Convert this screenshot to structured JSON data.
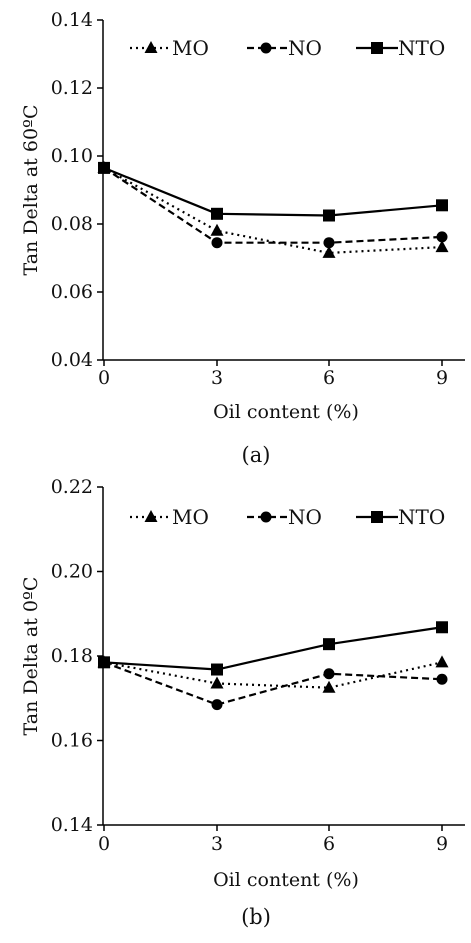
{
  "chart_data": [
    {
      "type": "line",
      "panel_label": "(a)",
      "xlabel": "Oil content (%)",
      "ylabel": "Tan Delta at 60ºC",
      "x": [
        0,
        3,
        6,
        9
      ],
      "xticks": [
        "0",
        "3",
        "6",
        "9"
      ],
      "ylim": [
        0.04,
        0.14
      ],
      "yticks": [
        "0.04",
        "0.06",
        "0.08",
        "0.10",
        "0.12",
        "0.14"
      ],
      "grid": false,
      "legend_position": "top",
      "series": [
        {
          "name": "MO",
          "marker": "triangle",
          "line_style": "dotted",
          "color": "#000000",
          "values": [
            0.0965,
            0.078,
            0.0715,
            0.0732
          ]
        },
        {
          "name": "NO",
          "marker": "circle",
          "line_style": "dashed",
          "color": "#000000",
          "values": [
            0.0965,
            0.0745,
            0.0745,
            0.0762
          ]
        },
        {
          "name": "NTO",
          "marker": "square",
          "line_style": "solid",
          "color": "#000000",
          "values": [
            0.0965,
            0.083,
            0.0825,
            0.0855
          ]
        }
      ]
    },
    {
      "type": "line",
      "panel_label": "(b)",
      "xlabel": "Oil content (%)",
      "ylabel": "Tan Delta at 0ºC",
      "x": [
        0,
        3,
        6,
        9
      ],
      "xticks": [
        "0",
        "3",
        "6",
        "9"
      ],
      "ylim": [
        0.14,
        0.22
      ],
      "yticks": [
        "0.14",
        "0.16",
        "0.18",
        "0.20",
        "0.22"
      ],
      "grid": false,
      "legend_position": "top",
      "series": [
        {
          "name": "MO",
          "marker": "triangle",
          "line_style": "dotted",
          "color": "#000000",
          "values": [
            0.1785,
            0.1735,
            0.1725,
            0.1785
          ]
        },
        {
          "name": "NO",
          "marker": "circle",
          "line_style": "dashed",
          "color": "#000000",
          "values": [
            0.1785,
            0.1685,
            0.1758,
            0.1745
          ]
        },
        {
          "name": "NTO",
          "marker": "square",
          "line_style": "solid",
          "color": "#000000",
          "values": [
            0.1785,
            0.1768,
            0.1828,
            0.1868
          ]
        }
      ]
    }
  ]
}
